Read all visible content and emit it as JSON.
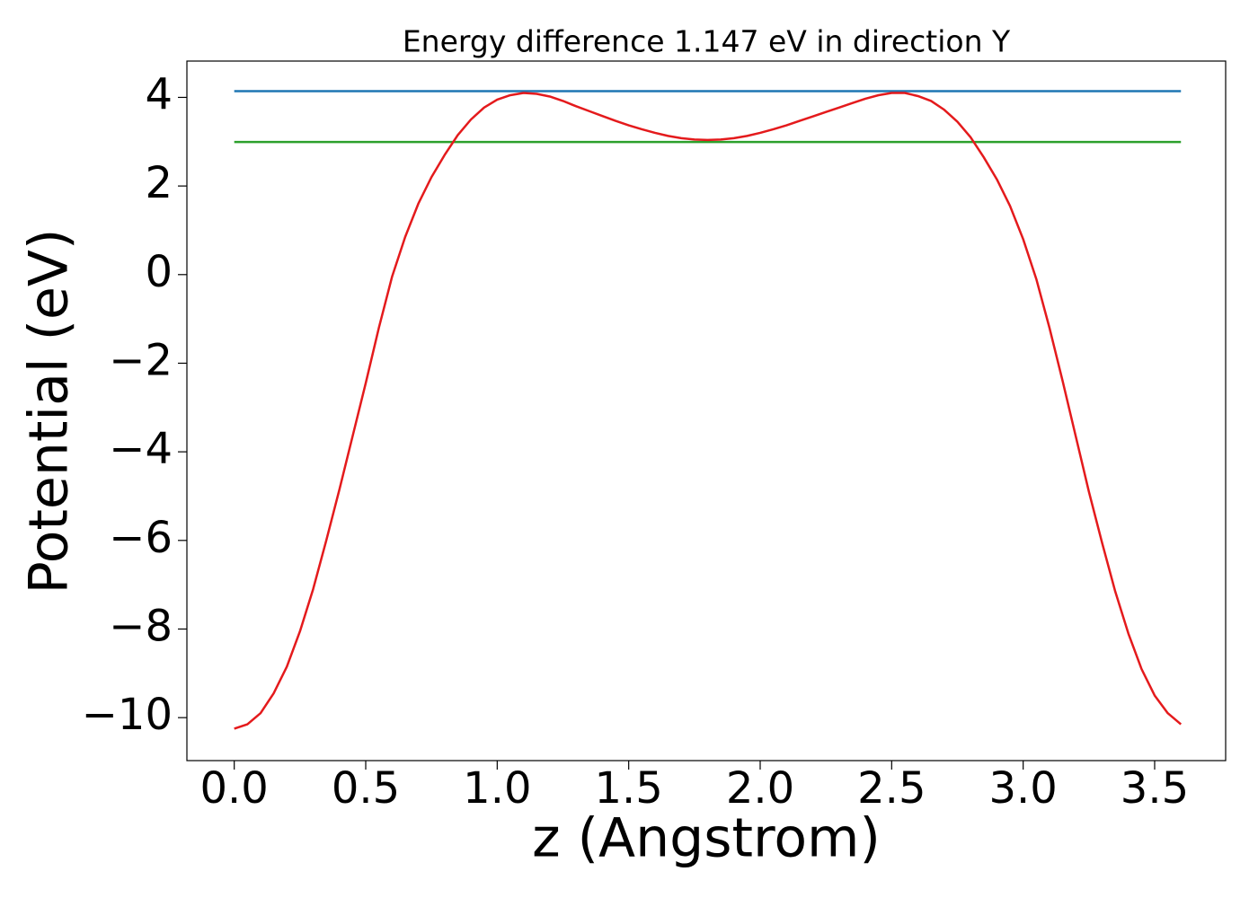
{
  "chart_data": {
    "type": "line",
    "title": "Energy difference 1.147 eV in direction Y",
    "x_label": "z (Angstrom)",
    "y_label": "Potential (eV)",
    "xlim": [
      -0.18,
      3.77
    ],
    "ylim": [
      -10.97,
      4.82
    ],
    "xticks": [
      {
        "value": 0,
        "label": "0.0"
      },
      0.5,
      {
        "value": 1,
        "label": "1.0"
      },
      1.5,
      {
        "value": 2,
        "label": "2.0"
      },
      2.5,
      {
        "value": 3,
        "label": "3.0"
      },
      3.5
    ],
    "yticks": [
      {
        "value": -10,
        "label": "−10"
      },
      {
        "value": -8,
        "label": "−8"
      },
      {
        "value": -6,
        "label": "−6"
      },
      {
        "value": -4,
        "label": "−4"
      },
      {
        "value": -2,
        "label": "−2"
      },
      0,
      2,
      4
    ],
    "grid": false,
    "series": [
      {
        "color": "#1f77b4",
        "x": [
          0,
          3.6
        ],
        "values": [
          4.14,
          4.14
        ]
      },
      {
        "color": "#2ca02c",
        "x": [
          0,
          3.6
        ],
        "values": [
          2.993,
          2.993
        ]
      },
      {
        "color": "#e41a1c",
        "x": [
          0,
          0.05,
          0.1,
          0.15,
          0.2,
          0.25,
          0.3,
          0.35,
          0.4,
          0.45,
          0.5,
          0.55,
          0.6,
          0.65,
          0.7,
          0.75,
          0.8,
          0.85,
          0.9,
          0.95,
          1.0,
          1.05,
          1.1,
          1.15,
          1.2,
          1.25,
          1.3,
          1.35,
          1.4,
          1.45,
          1.5,
          1.55,
          1.6,
          1.65,
          1.7,
          1.75,
          1.8,
          1.85,
          1.9,
          1.95,
          2.0,
          2.05,
          2.1,
          2.15,
          2.2,
          2.25,
          2.3,
          2.35,
          2.4,
          2.45,
          2.5,
          2.55,
          2.6,
          2.65,
          2.7,
          2.75,
          2.8,
          2.85,
          2.9,
          2.95,
          3.0,
          3.05,
          3.1,
          3.15,
          3.2,
          3.25,
          3.3,
          3.35,
          3.4,
          3.45,
          3.5,
          3.55,
          3.6
        ],
        "values": [
          -10.25,
          -10.15,
          -9.9,
          -9.45,
          -8.85,
          -8.05,
          -7.1,
          -6.0,
          -4.85,
          -3.65,
          -2.45,
          -1.2,
          -0.05,
          0.85,
          1.6,
          2.2,
          2.7,
          3.15,
          3.5,
          3.77,
          3.95,
          4.05,
          4.1,
          4.08,
          4.02,
          3.92,
          3.8,
          3.69,
          3.58,
          3.47,
          3.37,
          3.28,
          3.2,
          3.13,
          3.08,
          3.05,
          3.04,
          3.05,
          3.08,
          3.13,
          3.2,
          3.28,
          3.37,
          3.47,
          3.57,
          3.67,
          3.77,
          3.87,
          3.97,
          4.05,
          4.1,
          4.1,
          4.03,
          3.92,
          3.72,
          3.45,
          3.1,
          2.65,
          2.15,
          1.55,
          0.8,
          -0.1,
          -1.2,
          -2.4,
          -3.65,
          -4.9,
          -6.05,
          -7.15,
          -8.1,
          -8.9,
          -9.5,
          -9.9,
          -10.15
        ]
      }
    ]
  }
}
